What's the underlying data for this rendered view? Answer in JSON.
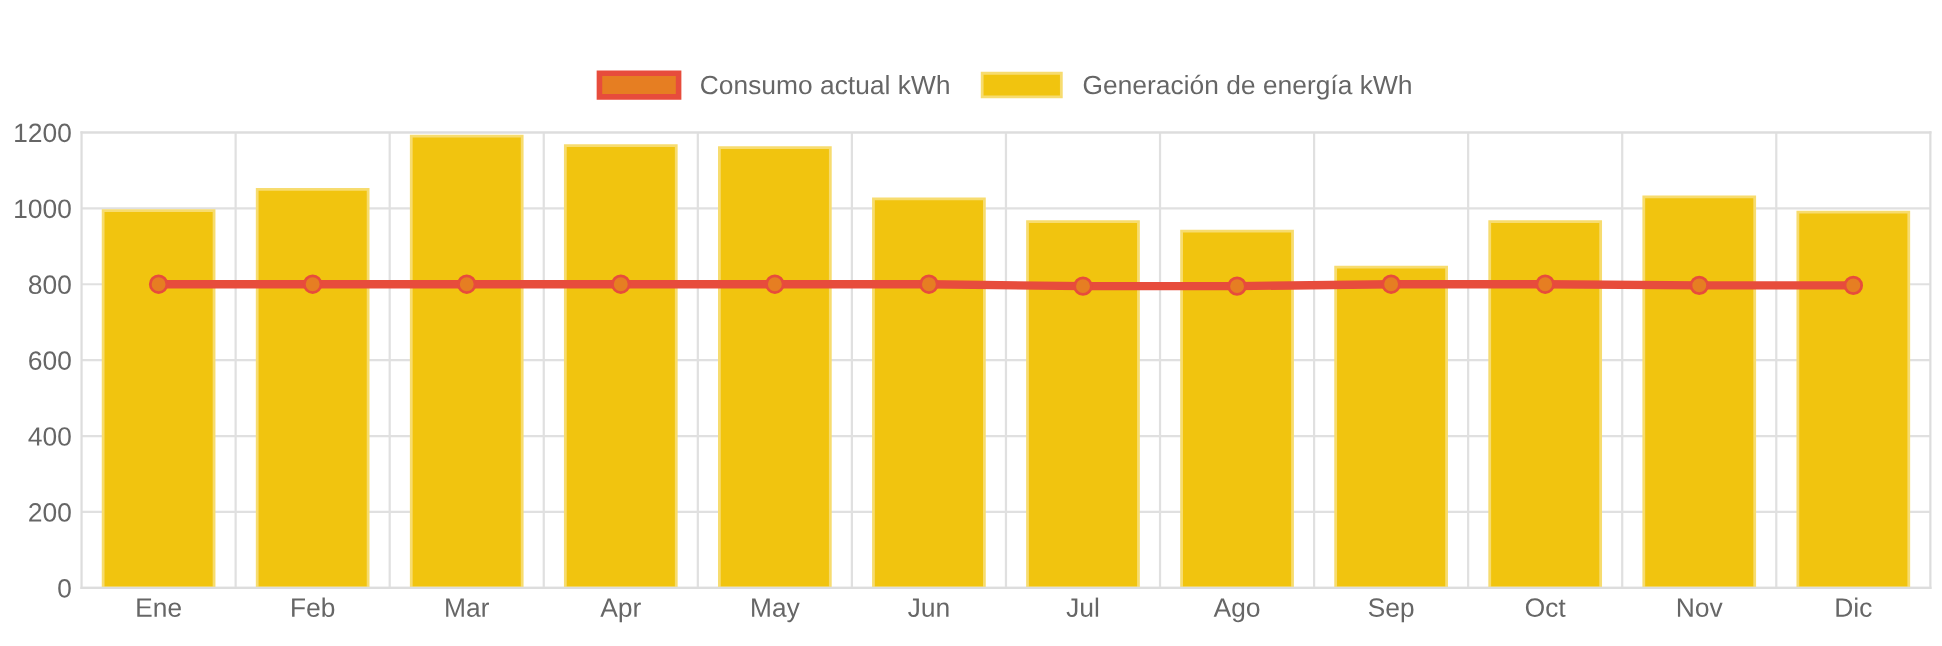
{
  "chart_data": {
    "type": "bar",
    "categories": [
      "Ene",
      "Feb",
      "Mar",
      "Apr",
      "May",
      "Jun",
      "Jul",
      "Ago",
      "Sep",
      "Oct",
      "Nov",
      "Dic"
    ],
    "series": [
      {
        "name": "Consumo actual kWh",
        "type": "line",
        "color": "#e74c3c",
        "marker": "circle",
        "values": [
          800,
          800,
          800,
          800,
          800,
          800,
          795,
          795,
          800,
          800,
          797,
          797
        ]
      },
      {
        "name": "Generación de energía kWh",
        "color": "#f1c40f",
        "values": [
          994,
          1050,
          1190,
          1165,
          1160,
          1025,
          965,
          940,
          845,
          965,
          1030,
          990
        ]
      }
    ],
    "ylim": [
      0,
      1200
    ],
    "yticks": [
      0,
      200,
      400,
      600,
      800,
      1000,
      1200
    ],
    "grid": true,
    "legend": "top"
  }
}
